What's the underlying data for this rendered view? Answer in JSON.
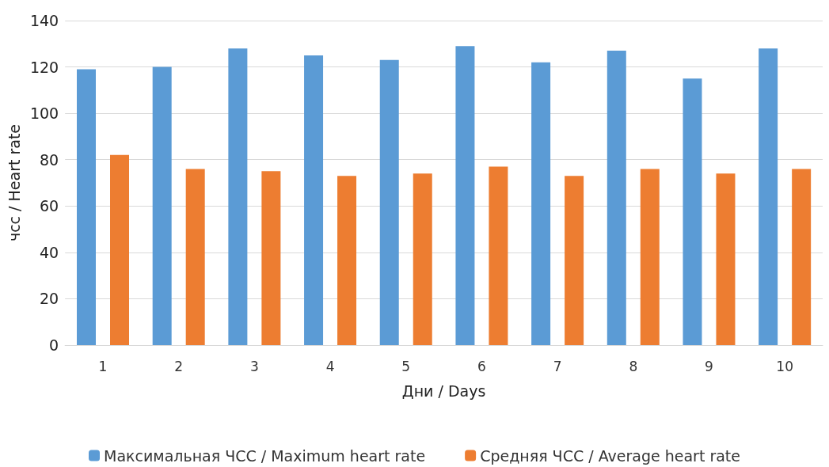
{
  "chart_data": {
    "type": "bar",
    "xlabel": "Дни / Days",
    "ylabel": "чсс / Heart rate",
    "categories": [
      "1",
      "2",
      "3",
      "4",
      "5",
      "6",
      "7",
      "8",
      "9",
      "10"
    ],
    "series": [
      {
        "name": "Максимальная ЧСС / Maximum heart rate",
        "color": "#5b9bd5",
        "values": [
          119,
          120,
          128,
          125,
          123,
          129,
          122,
          127,
          115,
          128
        ]
      },
      {
        "name": "Средняя ЧСС / Average heart rate",
        "color": "#ed7d31",
        "values": [
          82,
          76,
          75,
          73,
          74,
          77,
          73,
          76,
          74,
          76
        ]
      }
    ],
    "ylim": [
      0,
      140
    ],
    "yticks": [
      0,
      20,
      40,
      60,
      80,
      100,
      120,
      140
    ],
    "grid": "y",
    "legend": "bottom"
  }
}
